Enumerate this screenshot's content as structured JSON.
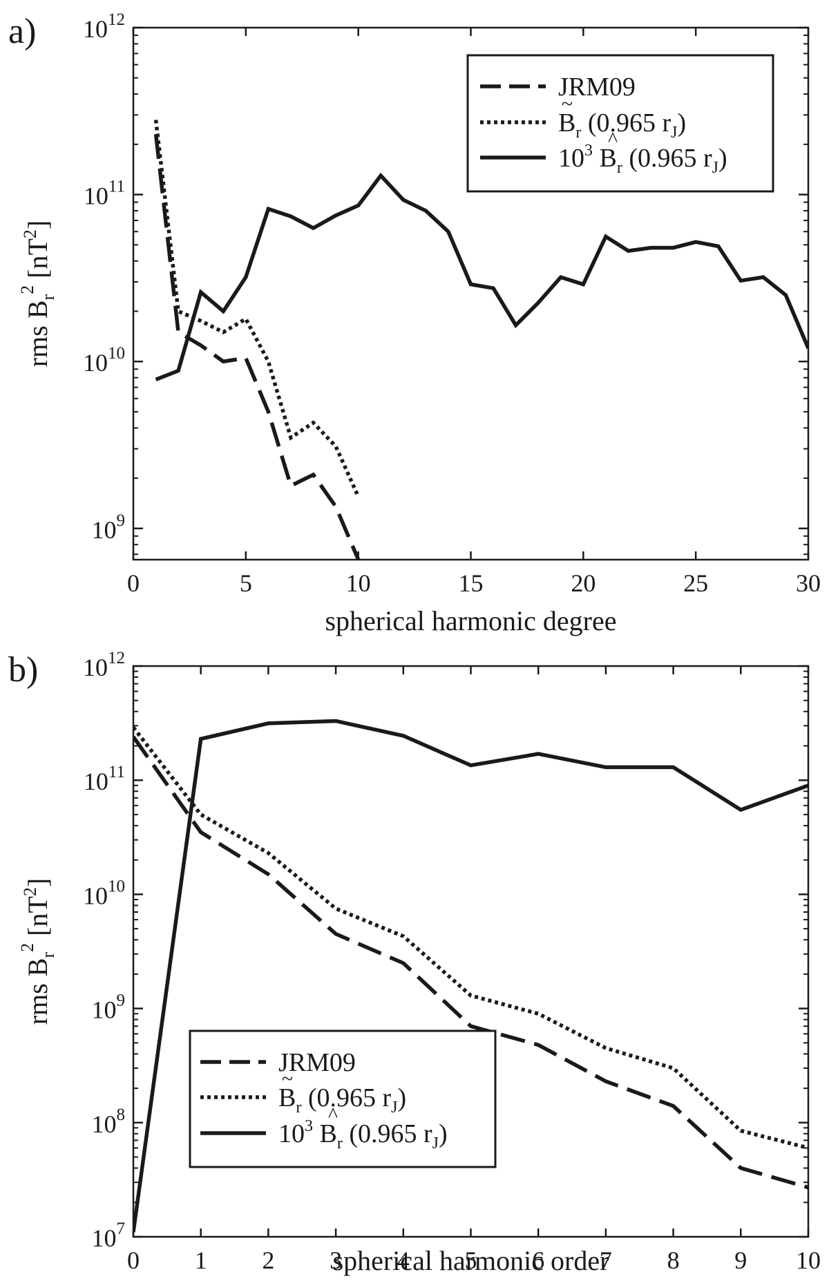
{
  "chart_data": [
    {
      "type": "line",
      "panel_label": "a)",
      "xlabel": "spherical harmonic degree",
      "ylabel": {
        "prefix": "rms  B",
        "sub": "r",
        "sup": "2",
        "unit_open": " [nT",
        "unit_sup": "2",
        "unit_close": "]"
      },
      "yscale": "log",
      "xlim": [
        0,
        30
      ],
      "ylim": [
        650000000,
        1000000000000
      ],
      "xticks": [
        0,
        5,
        10,
        15,
        20,
        25,
        30
      ],
      "xtick_labels": [
        "0",
        "5",
        "10",
        "15",
        "20",
        "25",
        "30"
      ],
      "yticks": [
        {
          "value": 1000000000,
          "base": "10",
          "exp": "9"
        },
        {
          "value": 10000000000,
          "base": "10",
          "exp": "10"
        },
        {
          "value": 100000000000,
          "base": "10",
          "exp": "11"
        },
        {
          "value": 1000000000000,
          "base": "10",
          "exp": "12"
        }
      ],
      "legend_position": "top-right",
      "series": [
        {
          "name": "JRM09",
          "style": "dashed",
          "legend": {
            "main": "JRM09"
          },
          "x": [
            1,
            2,
            3,
            4,
            5,
            6,
            7,
            8,
            9,
            10
          ],
          "values": [
            230000000000,
            15000000000,
            12500000000,
            10000000000,
            10500000000,
            5000000000,
            1800000000,
            2100000000,
            1350000000,
            650000000
          ]
        },
        {
          "name": "B~r (0.965 rJ)",
          "style": "dotted",
          "legend": {
            "prefix": "",
            "accent": "~",
            "base": "B",
            "sub": "r",
            "paren": " (0.965 r",
            "paren_sub": "J",
            "close": ")"
          },
          "x": [
            1,
            2,
            3,
            4,
            5,
            6,
            7,
            8,
            9,
            10
          ],
          "values": [
            280000000000,
            20000000000,
            17500000000,
            15000000000,
            18000000000,
            10000000000,
            3500000000,
            4300000000,
            3100000000,
            1550000000
          ]
        },
        {
          "name": "10^3 B^r (0.965 rJ)",
          "style": "solid",
          "legend": {
            "prefix": "10",
            "prefix_sup": "3",
            "accent": "^",
            "base": "B",
            "sub": "r",
            "paren": " (0.965 r",
            "paren_sub": "J",
            "close": ")"
          },
          "x": [
            1,
            2,
            3,
            4,
            5,
            6,
            7,
            8,
            9,
            10,
            11,
            12,
            13,
            14,
            15,
            16,
            17,
            18,
            19,
            20,
            21,
            22,
            23,
            24,
            25,
            26,
            27,
            28,
            29,
            30
          ],
          "values": [
            7800000000,
            8800000000,
            26000000000,
            20000000000,
            32000000000,
            82000000000,
            74000000000,
            63000000000,
            75000000000,
            86000000000,
            130000000000,
            93000000000,
            80000000000,
            60000000000,
            29000000000,
            27500000000,
            16500000000,
            22500000000,
            32000000000,
            29000000000,
            56000000000,
            46000000000,
            48000000000,
            48000000000,
            52000000000,
            49000000000,
            30500000000,
            32000000000,
            25000000000,
            12000000000
          ]
        }
      ]
    },
    {
      "type": "line",
      "panel_label": "b)",
      "xlabel": "spherical harmonic order",
      "ylabel": {
        "prefix": "rms  B",
        "sub": "r",
        "sup": "2",
        "unit_open": " [nT",
        "unit_sup": "2",
        "unit_close": "]"
      },
      "yscale": "log",
      "xlim": [
        0,
        10
      ],
      "ylim": [
        10000000,
        1000000000000
      ],
      "xticks": [
        0,
        1,
        2,
        3,
        4,
        5,
        6,
        7,
        8,
        9,
        10
      ],
      "xtick_labels": [
        "0",
        "1",
        "2",
        "3",
        "4",
        "5",
        "6",
        "7",
        "8",
        "9",
        "10"
      ],
      "yticks": [
        {
          "value": 10000000,
          "base": "10",
          "exp": "7"
        },
        {
          "value": 100000000,
          "base": "10",
          "exp": "8"
        },
        {
          "value": 1000000000,
          "base": "10",
          "exp": "9"
        },
        {
          "value": 10000000000,
          "base": "10",
          "exp": "10"
        },
        {
          "value": 100000000000,
          "base": "10",
          "exp": "11"
        },
        {
          "value": 1000000000000,
          "base": "10",
          "exp": "12"
        }
      ],
      "legend_position": "bottom-left",
      "series": [
        {
          "name": "JRM09",
          "style": "dashed",
          "legend": {
            "main": "JRM09"
          },
          "x": [
            0,
            1,
            2,
            3,
            4,
            5,
            6,
            7,
            8,
            9,
            10
          ],
          "values": [
            240000000000,
            35000000000,
            15000000000,
            4500000000,
            2500000000,
            700000000,
            480000000,
            230000000,
            140000000,
            40000000,
            27000000
          ]
        },
        {
          "name": "B~r (0.965 rJ)",
          "style": "dotted",
          "legend": {
            "prefix": "",
            "accent": "~",
            "base": "B",
            "sub": "r",
            "paren": " (0.965 r",
            "paren_sub": "J",
            "close": ")"
          },
          "x": [
            0,
            1,
            2,
            3,
            4,
            5,
            6,
            7,
            8,
            9,
            10
          ],
          "values": [
            290000000000,
            50000000000,
            23000000000,
            7500000000,
            4300000000,
            1300000000,
            900000000,
            450000000,
            300000000,
            85000000,
            60000000
          ]
        },
        {
          "name": "10^3 B^r (0.965 rJ)",
          "style": "solid",
          "legend": {
            "prefix": "10",
            "prefix_sup": "3",
            "accent": "^",
            "base": "B",
            "sub": "r",
            "paren": " (0.965 r",
            "paren_sub": "J",
            "close": ")"
          },
          "x": [
            0,
            1,
            2,
            3,
            4,
            5,
            6,
            7,
            8,
            9,
            10
          ],
          "values": [
            11000000,
            230000000000,
            315000000000,
            330000000000,
            245000000000,
            135000000000,
            170000000000,
            130000000000,
            130000000000,
            55000000000,
            90000000000
          ]
        }
      ]
    }
  ]
}
